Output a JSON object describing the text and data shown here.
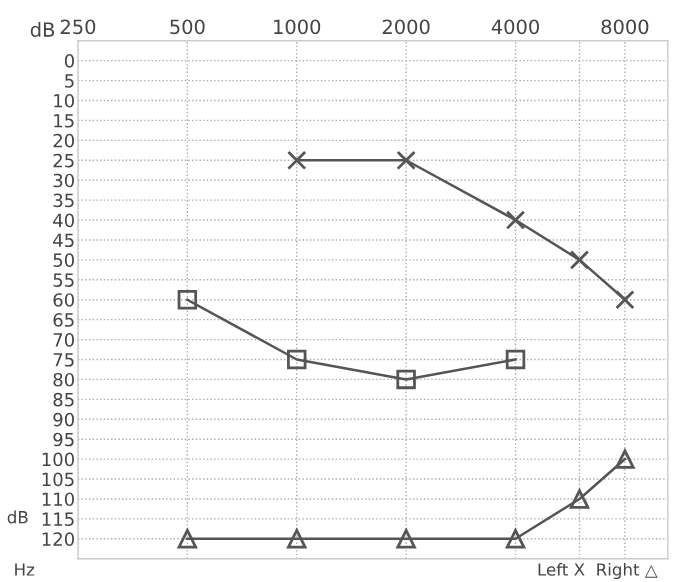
{
  "chart_data": {
    "type": "line",
    "log": "x",
    "ylabel": "dB",
    "series": [
      {
        "color": "#555555",
        "marker": "cross",
        "x": [
          1000,
          2000,
          4000,
          6000,
          8000
        ],
        "values": [
          25,
          25,
          40,
          50,
          60
        ]
      },
      {
        "color": "#555555",
        "marker": "square",
        "x": [
          500,
          1000,
          2000,
          4000
        ],
        "values": [
          60,
          75,
          80,
          75
        ]
      },
      {
        "color": "#555555",
        "marker": "triangle",
        "x": [
          500,
          1000,
          2000,
          4000,
          6000,
          8000
        ],
        "values": [
          120,
          120,
          120,
          120,
          110,
          100
        ]
      }
    ],
    "xlim": [
      250,
      10500
    ],
    "xticks": [
      250,
      500,
      1000,
      2000,
      4000,
      {
        "value": 6000,
        "label": null
      },
      8000
    ],
    "ylim": [
      125,
      -5
    ],
    "yticks": [
      0,
      5,
      10,
      15,
      20,
      25,
      30,
      35,
      40,
      45,
      50,
      55,
      60,
      65,
      70,
      75,
      80,
      85,
      90,
      95,
      100,
      105,
      110,
      115,
      120
    ],
    "grid": true,
    "annotations": [
      "dB",
      "Hz",
      "Left X  Right △"
    ]
  }
}
